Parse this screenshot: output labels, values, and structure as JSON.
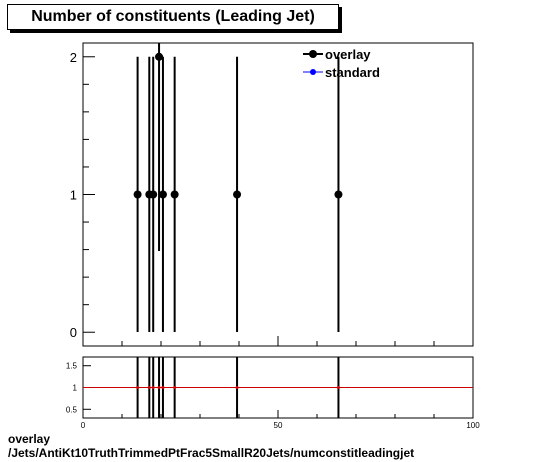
{
  "title": "Number of constituents (Leading Jet)",
  "footer": {
    "line1": "overlay",
    "line2": "/Jets/AntiKt10TruthTrimmedPtFrac5SmallR20Jets/numconstitleadingjet"
  },
  "colors": {
    "overlay": "#000000",
    "standard": "#0000ff",
    "ratio_line": "#cc0000"
  },
  "chart_data": [
    {
      "type": "scatter",
      "panel": "main",
      "title": "Number of constituents (Leading Jet)",
      "xlim": [
        0,
        100
      ],
      "ylim": [
        -0.1,
        2.1
      ],
      "yticks": [
        0,
        1,
        2
      ],
      "ytick_labels": [
        "0",
        "1",
        "2"
      ],
      "legend_placement": "top-right",
      "series": [
        {
          "name": "overlay",
          "x": [
            14,
            17,
            18,
            19.5,
            20.5,
            23.5,
            39.5,
            65.5
          ],
          "y": [
            1,
            1,
            1,
            2,
            1,
            1,
            1,
            1
          ],
          "err": [
            1,
            1,
            1,
            1.41,
            1,
            1,
            1,
            1
          ]
        },
        {
          "name": "standard",
          "x": [],
          "y": []
        }
      ]
    },
    {
      "type": "scatter",
      "panel": "ratio",
      "xlim": [
        0,
        100
      ],
      "ylim": [
        0.3,
        1.7
      ],
      "yticks": [
        0.5,
        1,
        1.5
      ],
      "ytick_labels": [
        "0.5",
        "1",
        "1.5"
      ],
      "xticks": [
        0,
        50,
        100
      ],
      "xtick_labels": [
        "0",
        "50",
        "100"
      ],
      "reference_line": 1,
      "series": [
        {
          "x": [
            14,
            17,
            18,
            19.5,
            20.5,
            23.5,
            39.5,
            65.5
          ],
          "y": [
            1,
            1,
            1,
            1,
            1,
            1,
            1,
            1
          ]
        }
      ]
    }
  ]
}
